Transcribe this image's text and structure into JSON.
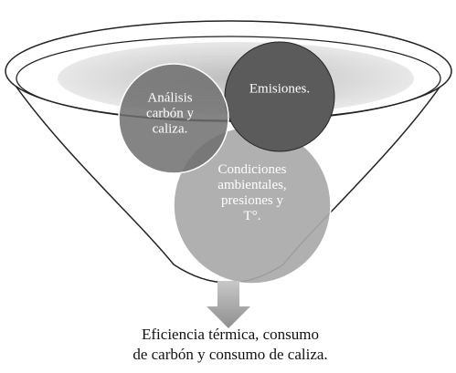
{
  "nodes": [
    {
      "lines": [
        "Análisis",
        "carbón y",
        "caliza."
      ]
    },
    {
      "lines": [
        "Emisiones."
      ]
    },
    {
      "lines": [
        "Condiciones",
        "ambientales,",
        "presiones y",
        "T°."
      ]
    }
  ],
  "output": {
    "lines": [
      "Eficiencia térmica, consumo",
      "de carbón y consumo de caliza."
    ]
  }
}
